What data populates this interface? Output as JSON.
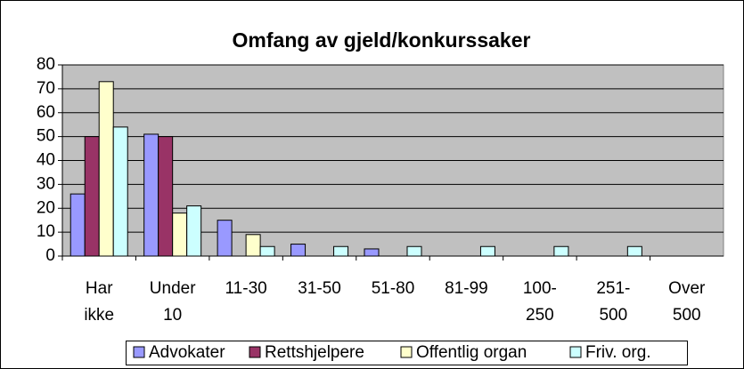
{
  "chart_data": {
    "type": "bar",
    "title": "Omfang av gjeld/konkurssaker",
    "categories": [
      "Har\nikke",
      "Under\n10",
      "11-30",
      "31-50",
      "51-80",
      "81-99",
      "100-\n250",
      "251-\n500",
      "Over\n500"
    ],
    "series": [
      {
        "name": "Advokater",
        "color": "#9999ff",
        "values": [
          26,
          51,
          15,
          5,
          3,
          0,
          0,
          0,
          0
        ]
      },
      {
        "name": "Rettshjelpere",
        "color": "#993366",
        "values": [
          50,
          50,
          0,
          0,
          0,
          0,
          0,
          0,
          0
        ]
      },
      {
        "name": "Offentlig organ",
        "color": "#ffffcc",
        "values": [
          73,
          18,
          9,
          0,
          0,
          0,
          0,
          0,
          0
        ]
      },
      {
        "name": "Friv. org.",
        "color": "#ccffff",
        "values": [
          54,
          21,
          4,
          4,
          4,
          4,
          4,
          4,
          0
        ]
      }
    ],
    "ylim": [
      0,
      80
    ],
    "yticks": [
      0,
      10,
      20,
      30,
      40,
      50,
      60,
      70,
      80
    ],
    "grid": true,
    "legend": "bottom"
  }
}
